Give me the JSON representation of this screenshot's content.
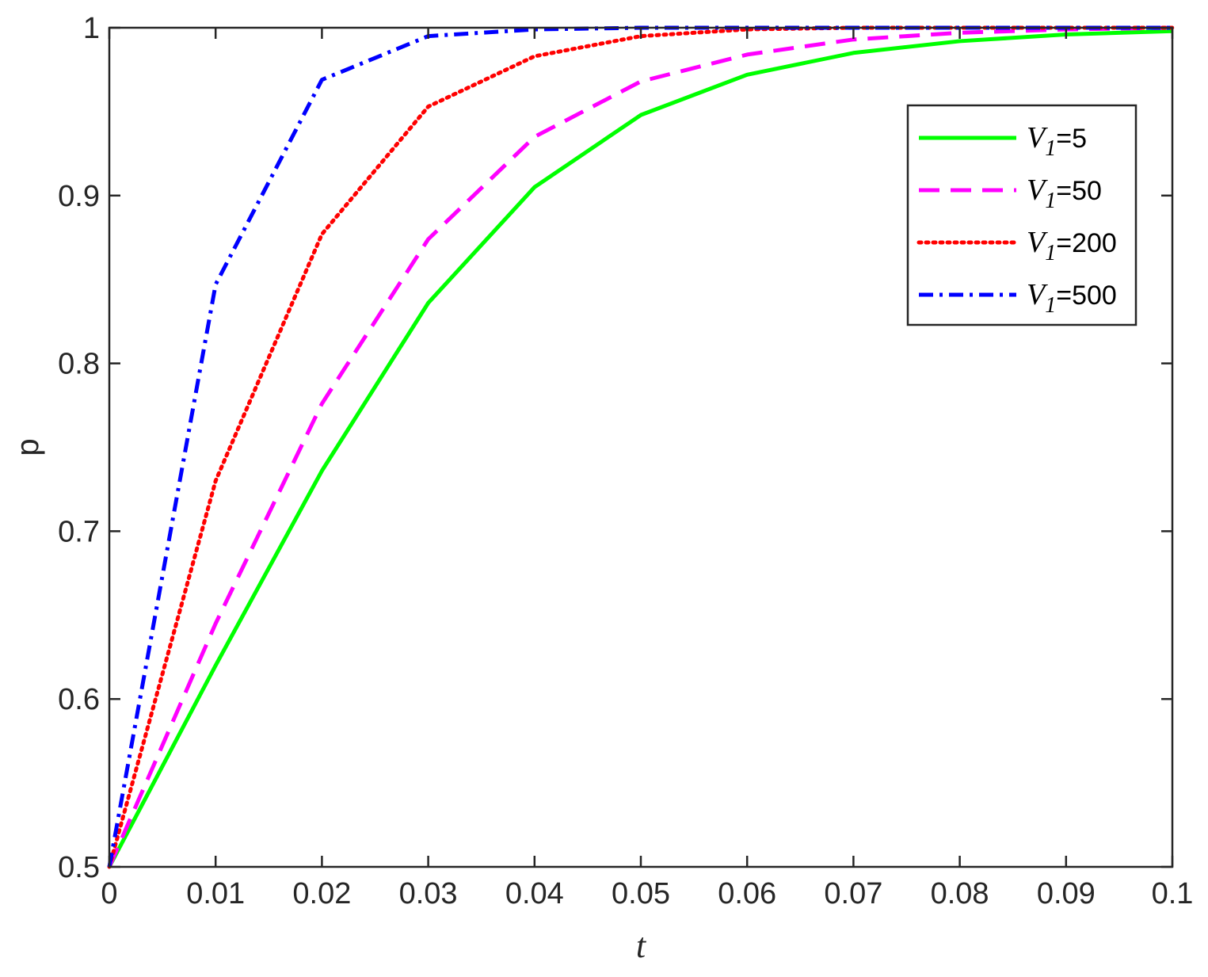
{
  "chart_data": {
    "type": "line",
    "title": "",
    "xlabel": "t",
    "ylabel": "p",
    "xlim": [
      0,
      0.1
    ],
    "ylim": [
      0.5,
      1
    ],
    "xticks": [
      "0",
      "0.01",
      "0.02",
      "0.03",
      "0.04",
      "0.05",
      "0.06",
      "0.07",
      "0.08",
      "0.09",
      "0.1"
    ],
    "yticks": [
      "0.5",
      "0.6",
      "0.7",
      "0.8",
      "0.9",
      "1"
    ],
    "grid": false,
    "legend_position": "top-right",
    "x": [
      0,
      0.01,
      0.02,
      0.03,
      0.04,
      0.05,
      0.06,
      0.07,
      0.08,
      0.09,
      0.1
    ],
    "series": [
      {
        "name": "V1=5",
        "label_var": "V",
        "label_sub": "1",
        "label_rest": "=5",
        "color": "#00ff00",
        "style": "solid",
        "values": [
          0.5,
          0.62,
          0.736,
          0.836,
          0.905,
          0.948,
          0.972,
          0.985,
          0.992,
          0.996,
          0.998
        ]
      },
      {
        "name": "V1=50",
        "label_var": "V",
        "label_sub": "1",
        "label_rest": "=50",
        "color": "#ff00ff",
        "style": "dashed",
        "values": [
          0.5,
          0.645,
          0.776,
          0.874,
          0.935,
          0.968,
          0.984,
          0.993,
          0.997,
          0.999,
          1.0
        ]
      },
      {
        "name": "V1=200",
        "label_var": "V",
        "label_sub": "1",
        "label_rest": "=200",
        "color": "#ff0000",
        "style": "dotted",
        "values": [
          0.5,
          0.73,
          0.877,
          0.953,
          0.983,
          0.995,
          0.999,
          1.0,
          1.0,
          1.0,
          1.0
        ]
      },
      {
        "name": "V1=500",
        "label_var": "V",
        "label_sub": "1",
        "label_rest": "=500",
        "color": "#0000ff",
        "style": "dashdot",
        "values": [
          0.5,
          0.847,
          0.969,
          0.995,
          0.999,
          1.0,
          1.0,
          1.0,
          1.0,
          1.0,
          1.0
        ]
      }
    ]
  }
}
